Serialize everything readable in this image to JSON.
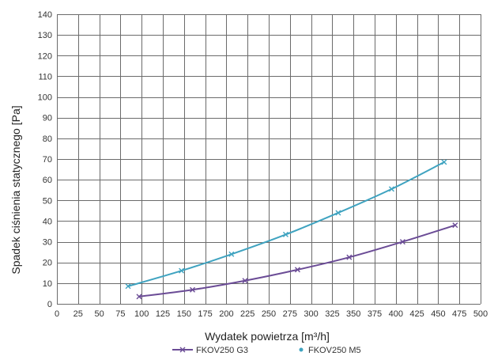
{
  "chart_data": {
    "type": "line",
    "xlabel": "Wydatek powietrza [m³/h]",
    "ylabel": "Spadek ciśnienia statycznego [Pa]",
    "xlim": [
      0,
      500
    ],
    "ylim": [
      0,
      140
    ],
    "x_ticks": [
      "0",
      "25",
      "50",
      "75",
      "100",
      "125",
      "150",
      "175",
      "200",
      "225",
      "250",
      "275",
      "300",
      "325",
      "350",
      "375",
      "400",
      "425",
      "450",
      "475",
      "500"
    ],
    "y_ticks": [
      "0",
      "10",
      "20",
      "30",
      "40",
      "50",
      "60",
      "70",
      "80",
      "90",
      "100",
      "110",
      "120",
      "130",
      "140"
    ],
    "grid": true,
    "legend_position": "bottom",
    "series": [
      {
        "name": "FKOV250 G3",
        "color": "#6b4c96",
        "marker": "x",
        "x": [
          97,
          160,
          222,
          284,
          345,
          408,
          470
        ],
        "y": [
          3.5,
          6.8,
          11.2,
          16.5,
          22.5,
          30,
          38
        ]
      },
      {
        "name": "FKOV250 M5",
        "color": "#3fa3c0",
        "marker": "x",
        "x": [
          84,
          147,
          206,
          270,
          332,
          395,
          457
        ],
        "y": [
          8.5,
          16,
          24,
          33.5,
          44,
          55.5,
          68.5
        ]
      }
    ]
  }
}
